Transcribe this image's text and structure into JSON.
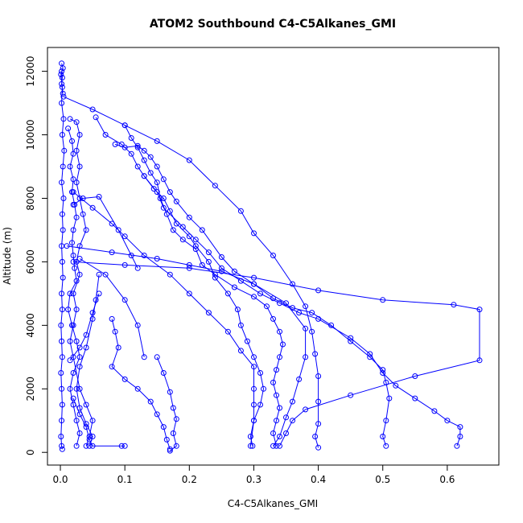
{
  "chart_data": {
    "type": "line",
    "title": "ATOM2 Southbound C4-C5Alkanes_GMI",
    "xlabel": "C4-C5Alkanes_GMI",
    "ylabel": "Altitude (m)",
    "xlim": [
      -0.02,
      0.68
    ],
    "ylim": [
      -400,
      12750
    ],
    "xticks": [
      0.0,
      0.1,
      0.2,
      0.3,
      0.4,
      0.5,
      0.6
    ],
    "xtick_labels": [
      "0.0",
      "0.1",
      "0.2",
      "0.3",
      "0.4",
      "0.5",
      "0.6"
    ],
    "yticks": [
      0,
      2000,
      4000,
      6000,
      8000,
      10000,
      12000
    ],
    "ytick_labels": [
      "0",
      "2000",
      "4000",
      "6000",
      "8000",
      "10000",
      "12000"
    ],
    "grid": false,
    "legend": "none",
    "color": "#0000ff",
    "series": [
      {
        "points": [
          [
            0.002,
            12250
          ],
          [
            0.004,
            12100
          ],
          [
            0.001,
            11900
          ],
          [
            0.003,
            11500
          ],
          [
            0.002,
            11000
          ],
          [
            0.005,
            10500
          ],
          [
            0.003,
            10000
          ],
          [
            0.006,
            9500
          ],
          [
            0.004,
            9000
          ],
          [
            0.002,
            8500
          ],
          [
            0.005,
            8000
          ],
          [
            0.003,
            7500
          ],
          [
            0.004,
            7000
          ],
          [
            0.002,
            6500
          ],
          [
            0.003,
            6000
          ],
          [
            0.004,
            5500
          ],
          [
            0.002,
            5000
          ],
          [
            0.003,
            4500
          ],
          [
            0.001,
            4000
          ],
          [
            0.002,
            3500
          ],
          [
            0.003,
            3000
          ],
          [
            0.001,
            2500
          ],
          [
            0.002,
            2000
          ],
          [
            0.003,
            1500
          ],
          [
            0.002,
            1000
          ],
          [
            0.001,
            500
          ],
          [
            0.002,
            200
          ],
          [
            0.003,
            100
          ]
        ]
      },
      {
        "points": [
          [
            0.002,
            12000
          ],
          [
            0.003,
            11800
          ],
          [
            0.002,
            11600
          ],
          [
            0.004,
            11300
          ]
        ]
      },
      {
        "points": [
          [
            0.012,
            10200
          ],
          [
            0.018,
            9800
          ],
          [
            0.02,
            9400
          ],
          [
            0.015,
            9000
          ],
          [
            0.02,
            8600
          ],
          [
            0.018,
            8200
          ],
          [
            0.022,
            7800
          ],
          [
            0.025,
            7400
          ],
          [
            0.02,
            7000
          ],
          [
            0.018,
            6600
          ],
          [
            0.02,
            6200
          ],
          [
            0.022,
            5800
          ],
          [
            0.025,
            5400
          ],
          [
            0.015,
            5000
          ],
          [
            0.012,
            4500
          ],
          [
            0.018,
            4000
          ],
          [
            0.025,
            3500
          ],
          [
            0.03,
            3000
          ],
          [
            0.02,
            2500
          ],
          [
            0.015,
            2000
          ],
          [
            0.02,
            1500
          ],
          [
            0.025,
            1000
          ],
          [
            0.03,
            600
          ],
          [
            0.025,
            200
          ]
        ]
      },
      {
        "points": [
          [
            0.015,
            10500
          ],
          [
            0.025,
            10400
          ],
          [
            0.03,
            10000
          ],
          [
            0.025,
            9500
          ],
          [
            0.03,
            9000
          ],
          [
            0.025,
            8500
          ],
          [
            0.03,
            8000
          ],
          [
            0.035,
            7500
          ],
          [
            0.04,
            7000
          ],
          [
            0.03,
            6500
          ],
          [
            0.025,
            6000
          ],
          [
            0.03,
            5600
          ],
          [
            0.02,
            5000
          ],
          [
            0.025,
            4500
          ],
          [
            0.02,
            4000
          ],
          [
            0.015,
            3500
          ],
          [
            0.02,
            3000
          ],
          [
            0.03,
            2000
          ],
          [
            0.04,
            1500
          ],
          [
            0.05,
            1000
          ],
          [
            0.045,
            500
          ],
          [
            0.04,
            200
          ]
        ]
      },
      {
        "points": [
          [
            0.055,
            10550
          ],
          [
            0.07,
            10000
          ],
          [
            0.095,
            9700
          ],
          [
            0.11,
            9400
          ],
          [
            0.12,
            9000
          ],
          [
            0.13,
            8700
          ],
          [
            0.145,
            8300
          ],
          [
            0.16,
            8000
          ],
          [
            0.17,
            7600
          ],
          [
            0.18,
            7200
          ],
          [
            0.2,
            6800
          ],
          [
            0.21,
            6500
          ],
          [
            0.23,
            6000
          ],
          [
            0.24,
            5500
          ],
          [
            0.26,
            5000
          ],
          [
            0.275,
            4500
          ],
          [
            0.28,
            4000
          ],
          [
            0.29,
            3500
          ],
          [
            0.3,
            3000
          ],
          [
            0.31,
            2500
          ],
          [
            0.315,
            2000
          ],
          [
            0.31,
            1500
          ],
          [
            0.3,
            1000
          ],
          [
            0.295,
            500
          ],
          [
            0.298,
            200
          ]
        ]
      },
      {
        "points": [
          [
            0.1,
            10300
          ],
          [
            0.11,
            9900
          ],
          [
            0.12,
            9600
          ],
          [
            0.13,
            9200
          ],
          [
            0.14,
            8800
          ],
          [
            0.15,
            8500
          ],
          [
            0.155,
            8000
          ],
          [
            0.165,
            7500
          ],
          [
            0.175,
            7000
          ],
          [
            0.19,
            6700
          ],
          [
            0.21,
            6400
          ],
          [
            0.22,
            5900
          ],
          [
            0.24,
            5600
          ],
          [
            0.27,
            5200
          ],
          [
            0.3,
            4900
          ],
          [
            0.32,
            4600
          ],
          [
            0.33,
            4200
          ],
          [
            0.34,
            3800
          ],
          [
            0.345,
            3400
          ],
          [
            0.34,
            3000
          ],
          [
            0.335,
            2600
          ],
          [
            0.33,
            2200
          ],
          [
            0.335,
            1800
          ],
          [
            0.34,
            1400
          ],
          [
            0.335,
            1000
          ],
          [
            0.33,
            600
          ],
          [
            0.335,
            200
          ]
        ]
      },
      {
        "points": [
          [
            0.085,
            9700
          ],
          [
            0.1,
            9600
          ],
          [
            0.12,
            9650
          ],
          [
            0.13,
            9500
          ],
          [
            0.14,
            9300
          ],
          [
            0.15,
            9000
          ],
          [
            0.16,
            8600
          ],
          [
            0.17,
            8200
          ],
          [
            0.18,
            7900
          ],
          [
            0.2,
            7400
          ],
          [
            0.22,
            7000
          ],
          [
            0.25,
            6150
          ],
          [
            0.27,
            5700
          ],
          [
            0.3,
            5300
          ],
          [
            0.33,
            4850
          ],
          [
            0.36,
            4550
          ],
          [
            0.39,
            4400
          ],
          [
            0.42,
            4000
          ],
          [
            0.45,
            3500
          ],
          [
            0.48,
            3000
          ],
          [
            0.5,
            2600
          ],
          [
            0.505,
            2200
          ],
          [
            0.51,
            1700
          ],
          [
            0.505,
            1000
          ],
          [
            0.5,
            500
          ],
          [
            0.505,
            200
          ]
        ]
      },
      {
        "points": [
          [
            0.13,
            8700
          ],
          [
            0.15,
            8200
          ],
          [
            0.16,
            7700
          ],
          [
            0.19,
            7100
          ],
          [
            0.21,
            6700
          ],
          [
            0.23,
            6300
          ],
          [
            0.25,
            5800
          ],
          [
            0.28,
            5400
          ],
          [
            0.31,
            5000
          ],
          [
            0.34,
            4700
          ],
          [
            0.37,
            4400
          ],
          [
            0.4,
            4200
          ],
          [
            0.45,
            3600
          ],
          [
            0.48,
            3100
          ],
          [
            0.5,
            2500
          ],
          [
            0.52,
            2100
          ],
          [
            0.55,
            1700
          ],
          [
            0.58,
            1300
          ],
          [
            0.6,
            1000
          ],
          [
            0.62,
            800
          ],
          [
            0.62,
            500
          ],
          [
            0.615,
            200
          ]
        ]
      },
      {
        "points": [
          [
            0.005,
            11200
          ],
          [
            0.05,
            10800
          ],
          [
            0.1,
            10300
          ],
          [
            0.15,
            9800
          ],
          [
            0.2,
            9200
          ],
          [
            0.24,
            8400
          ],
          [
            0.28,
            7600
          ],
          [
            0.3,
            6900
          ],
          [
            0.33,
            6200
          ],
          [
            0.36,
            5300
          ],
          [
            0.38,
            4600
          ],
          [
            0.39,
            3800
          ],
          [
            0.395,
            3100
          ],
          [
            0.4,
            2400
          ],
          [
            0.4,
            1600
          ],
          [
            0.4,
            900
          ],
          [
            0.395,
            500
          ],
          [
            0.4,
            150
          ]
        ]
      },
      {
        "points": [
          [
            0.02,
            6000
          ],
          [
            0.1,
            5900
          ],
          [
            0.2,
            5800
          ],
          [
            0.3,
            5500
          ],
          [
            0.4,
            5100
          ],
          [
            0.5,
            4800
          ],
          [
            0.61,
            4650
          ],
          [
            0.65,
            4500
          ],
          [
            0.65,
            2900
          ],
          [
            0.55,
            2400
          ],
          [
            0.45,
            1800
          ],
          [
            0.38,
            1350
          ],
          [
            0.36,
            1000
          ],
          [
            0.35,
            600
          ],
          [
            0.34,
            200
          ]
        ]
      },
      {
        "points": [
          [
            0.01,
            6500
          ],
          [
            0.08,
            6300
          ],
          [
            0.15,
            6100
          ],
          [
            0.2,
            5900
          ],
          [
            0.25,
            5700
          ],
          [
            0.3,
            5300
          ],
          [
            0.35,
            4700
          ],
          [
            0.38,
            3900
          ],
          [
            0.38,
            3000
          ],
          [
            0.37,
            2300
          ],
          [
            0.36,
            1600
          ],
          [
            0.35,
            1100
          ],
          [
            0.34,
            500
          ],
          [
            0.33,
            200
          ]
        ]
      },
      {
        "points": [
          [
            0.02,
            8200
          ],
          [
            0.05,
            7700
          ],
          [
            0.08,
            7200
          ],
          [
            0.1,
            6800
          ],
          [
            0.13,
            6200
          ],
          [
            0.17,
            5600
          ],
          [
            0.2,
            5000
          ],
          [
            0.23,
            4400
          ],
          [
            0.26,
            3800
          ],
          [
            0.28,
            3200
          ],
          [
            0.3,
            2700
          ],
          [
            0.3,
            2000
          ],
          [
            0.3,
            1500
          ],
          [
            0.3,
            1000
          ],
          [
            0.295,
            200
          ]
        ]
      },
      {
        "points": [
          [
            0.08,
            4200
          ],
          [
            0.085,
            3800
          ],
          [
            0.09,
            3300
          ],
          [
            0.08,
            2700
          ],
          [
            0.1,
            2300
          ],
          [
            0.12,
            2000
          ],
          [
            0.14,
            1600
          ],
          [
            0.15,
            1200
          ],
          [
            0.16,
            800
          ],
          [
            0.165,
            400
          ],
          [
            0.17,
            100
          ]
        ]
      },
      {
        "points": [
          [
            0.06,
            5600
          ],
          [
            0.055,
            4800
          ],
          [
            0.05,
            4200
          ],
          [
            0.04,
            3300
          ],
          [
            0.03,
            2700
          ],
          [
            0.025,
            2000
          ],
          [
            0.03,
            1400
          ],
          [
            0.04,
            900
          ],
          [
            0.05,
            500
          ],
          [
            0.045,
            200
          ]
        ]
      },
      {
        "points": [
          [
            0.15,
            3000
          ],
          [
            0.16,
            2500
          ],
          [
            0.17,
            1900
          ],
          [
            0.175,
            1400
          ],
          [
            0.18,
            1050
          ],
          [
            0.175,
            600
          ],
          [
            0.18,
            200
          ],
          [
            0.17,
            50
          ]
        ]
      },
      {
        "points": [
          [
            0.02,
            1700
          ],
          [
            0.03,
            1200
          ],
          [
            0.04,
            800
          ],
          [
            0.045,
            400
          ],
          [
            0.05,
            200
          ],
          [
            0.095,
            200
          ],
          [
            0.1,
            200
          ]
        ]
      },
      {
        "points": [
          [
            0.02,
            7800
          ],
          [
            0.035,
            8000
          ],
          [
            0.06,
            8050
          ],
          [
            0.09,
            7000
          ],
          [
            0.11,
            6200
          ],
          [
            0.12,
            5800
          ]
        ]
      },
      {
        "points": [
          [
            0.03,
            6100
          ],
          [
            0.07,
            5600
          ],
          [
            0.1,
            4800
          ],
          [
            0.12,
            4000
          ],
          [
            0.13,
            3000
          ]
        ]
      },
      {
        "points": [
          [
            0.015,
            2900
          ],
          [
            0.03,
            3300
          ],
          [
            0.04,
            3700
          ],
          [
            0.05,
            4400
          ],
          [
            0.06,
            5000
          ]
        ]
      }
    ]
  }
}
